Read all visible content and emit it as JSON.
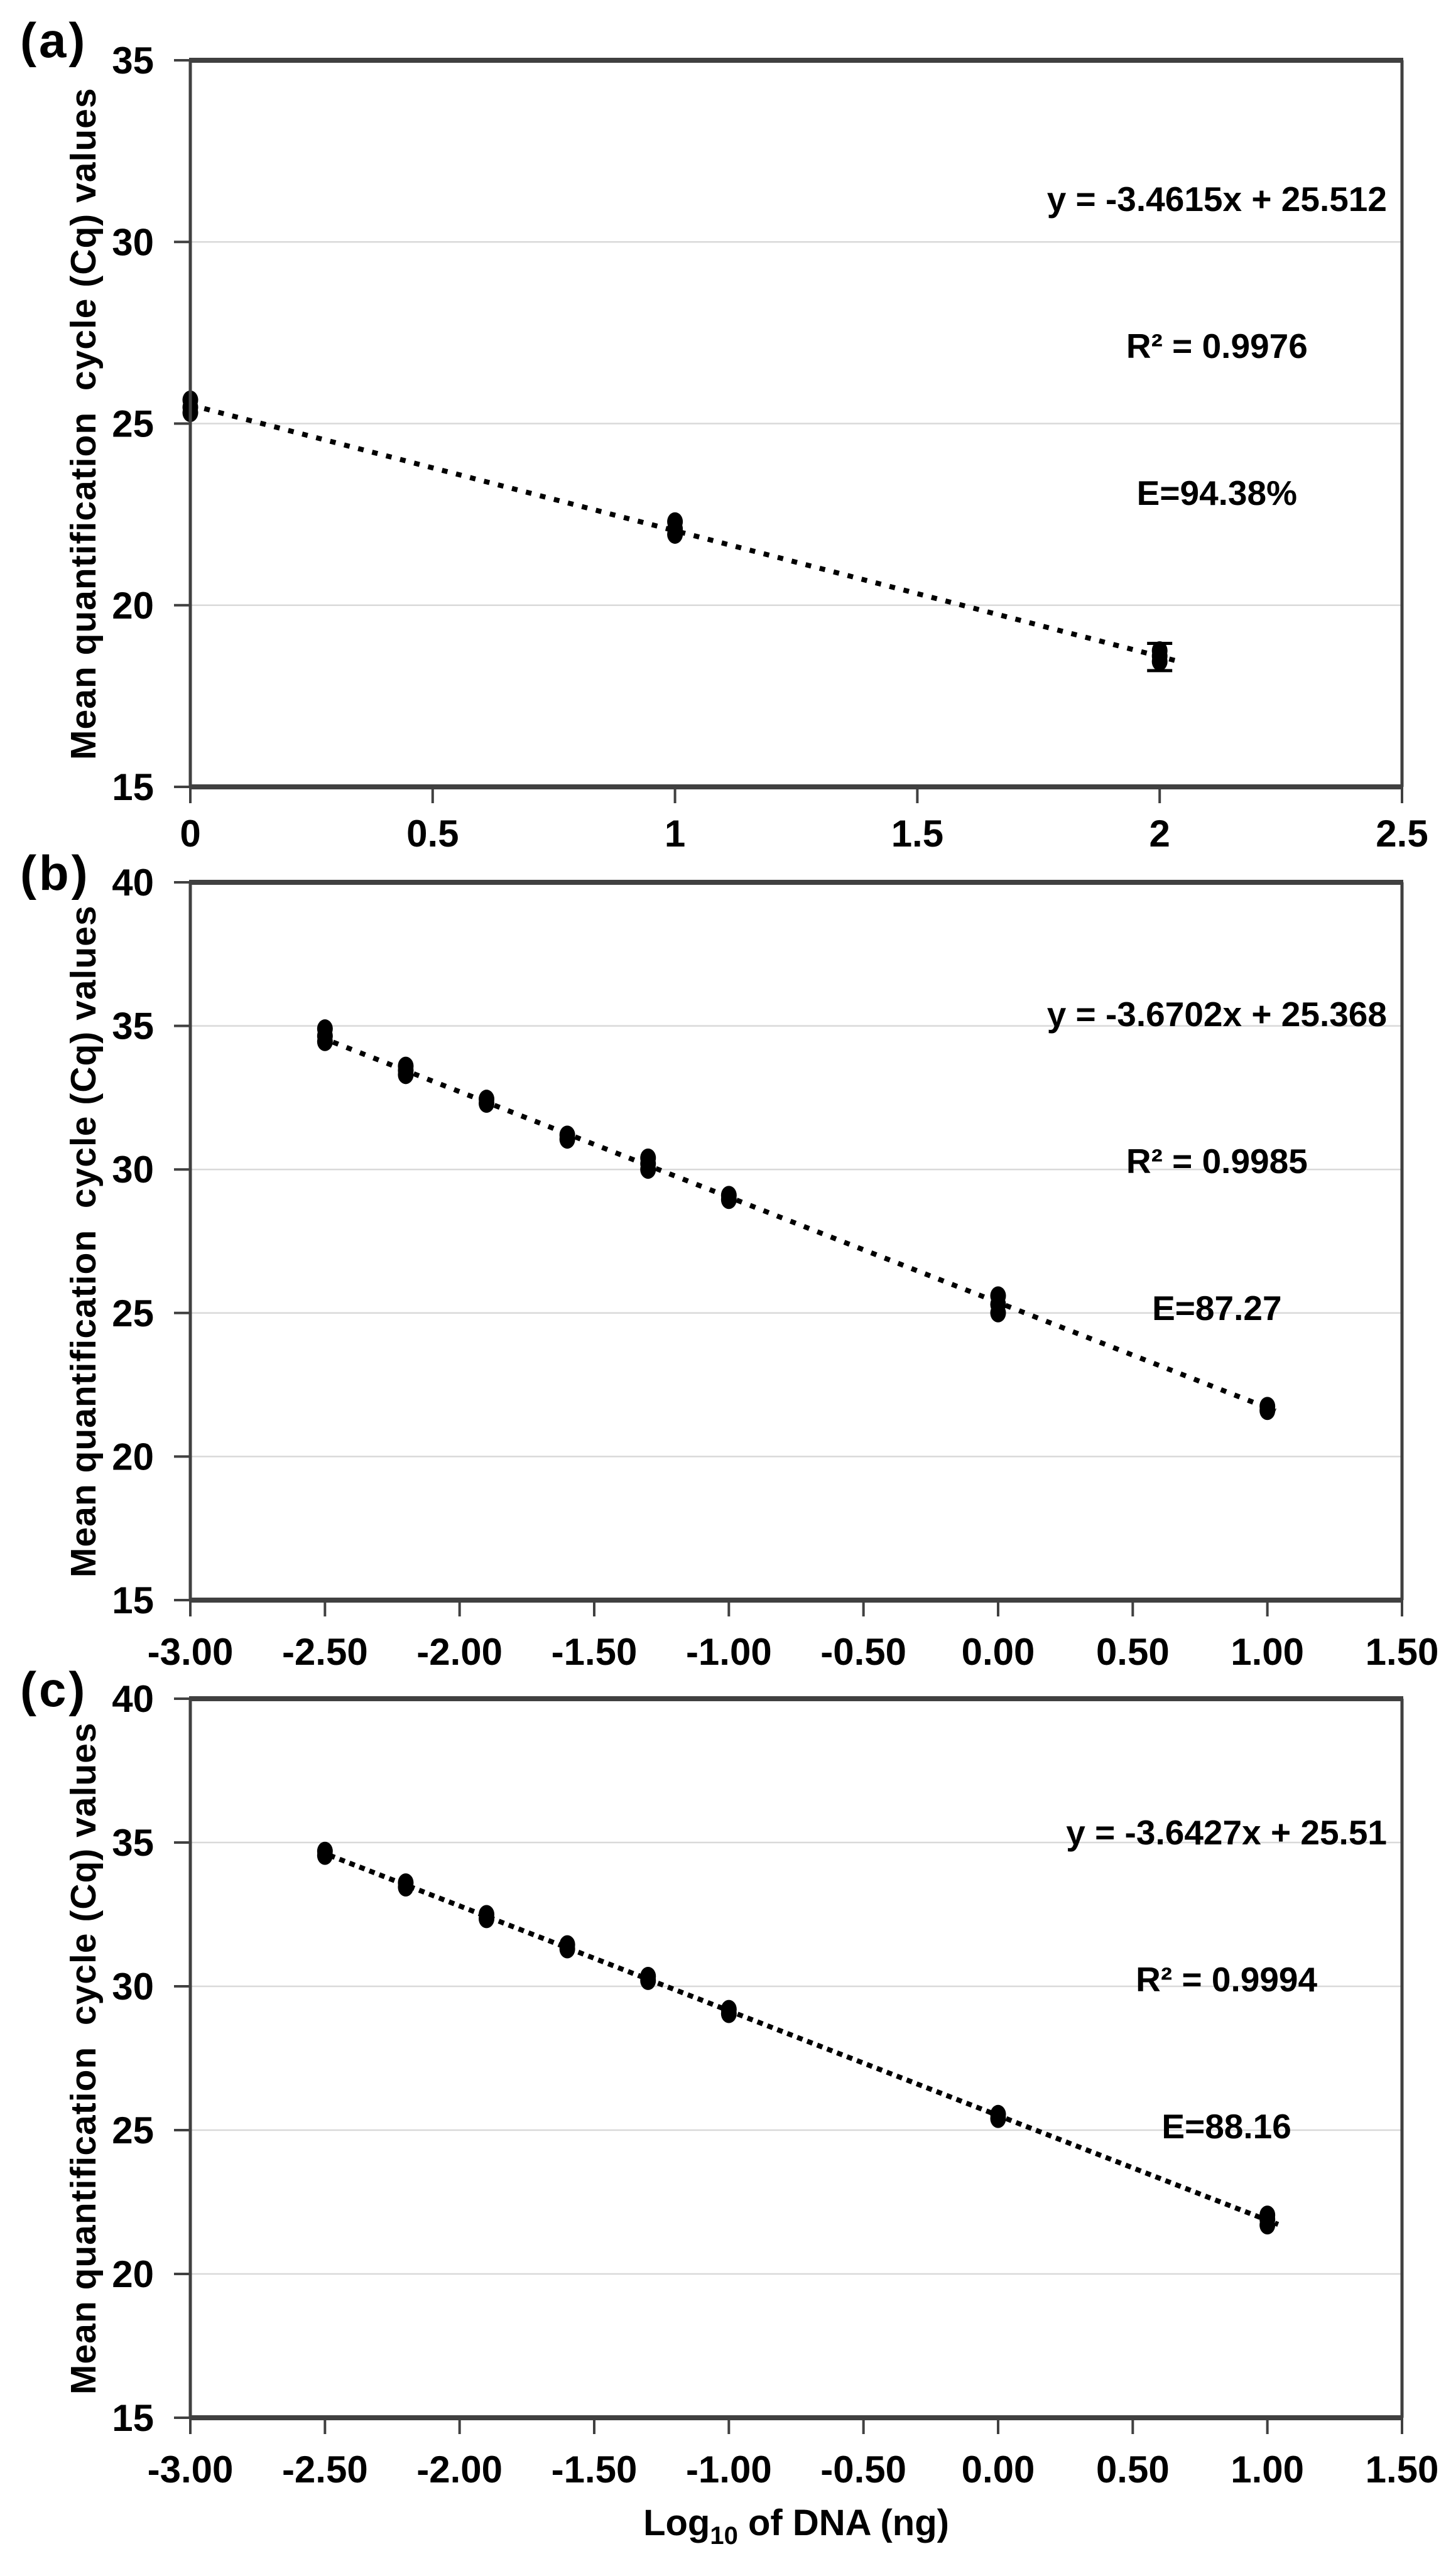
{
  "colors": {
    "background": "#ffffff",
    "text": "#000000",
    "axis": "#404040",
    "gridline": "#d9d9d9",
    "marker": "#000000",
    "trendline": "#000000"
  },
  "x_axis_title": {
    "prefix": "Log",
    "subscript": "10",
    "suffix": " of DNA (ng)"
  },
  "chart_data": [
    {
      "id": "a",
      "panel_label": "(a)",
      "type": "scatter",
      "y_axis_title": "Mean quantification  cycle (Cq) values",
      "annotation": {
        "equation": "y = -3.4615x + 25.512",
        "r_squared": "R² = 0.9976",
        "efficiency": "E=94.38%"
      },
      "xlim": [
        0,
        2.5
      ],
      "ylim": [
        15,
        35
      ],
      "xticks": {
        "values": [
          0,
          0.5,
          1,
          1.5,
          2,
          2.5
        ],
        "labels": [
          "0",
          "0.5",
          "1",
          "1.5",
          "2",
          "2.5"
        ]
      },
      "yticks": {
        "values": [
          35,
          30,
          25,
          20,
          15
        ],
        "labels": [
          "35",
          "30",
          "25",
          "20",
          "15"
        ]
      },
      "grid": "horizontal",
      "legend": "none",
      "trendline": {
        "slope": -3.4615,
        "intercept": 25.512,
        "x_start": 0,
        "x_end": 2.04,
        "style": "dotted"
      },
      "points": [
        {
          "x": 0,
          "replicates": [
            25.3,
            25.45,
            25.65
          ]
        },
        {
          "x": 1,
          "replicates": [
            21.95,
            22.1,
            22.3
          ]
        },
        {
          "x": 2,
          "replicates": [
            18.45,
            18.6,
            18.75
          ],
          "error_bar": {
            "low": 18.2,
            "high": 18.95
          }
        }
      ]
    },
    {
      "id": "b",
      "panel_label": "(b)",
      "type": "scatter",
      "y_axis_title": "Mean quantification  cycle (Cq) values",
      "annotation": {
        "equation": "y = -3.6702x + 25.368",
        "r_squared": "R² = 0.9985",
        "efficiency": "E=87.27"
      },
      "xlim": [
        -3,
        1.5
      ],
      "ylim": [
        15,
        40
      ],
      "xticks": {
        "values": [
          -3,
          -2.5,
          -2,
          -1.5,
          -1,
          -0.5,
          0,
          0.5,
          1,
          1.5
        ],
        "labels": [
          "-3.00",
          "-2.50",
          "-2.00",
          "-1.50",
          "-1.00",
          "-0.50",
          "0.00",
          "0.50",
          "1.00",
          "1.50"
        ]
      },
      "yticks": {
        "values": [
          40,
          35,
          30,
          25,
          20,
          15
        ],
        "labels": [
          "40",
          "35",
          "30",
          "25",
          "20",
          "15"
        ]
      },
      "grid": "horizontal",
      "legend": "none",
      "trendline": {
        "slope": -3.6702,
        "intercept": 25.368,
        "x_start": -2.52,
        "x_end": 1.03,
        "style": "dotted"
      },
      "points": [
        {
          "x": -2.5,
          "replicates": [
            34.45,
            34.65,
            34.9
          ]
        },
        {
          "x": -2.2,
          "replicates": [
            33.3,
            33.45,
            33.6
          ]
        },
        {
          "x": -1.9,
          "replicates": [
            32.3,
            32.45
          ]
        },
        {
          "x": -1.6,
          "replicates": [
            31.05,
            31.2
          ]
        },
        {
          "x": -1.3,
          "replicates": [
            30.0,
            30.2,
            30.4
          ]
        },
        {
          "x": -1.0,
          "replicates": [
            28.95,
            29.1
          ]
        },
        {
          "x": 0,
          "replicates": [
            25.0,
            25.3,
            25.6
          ]
        },
        {
          "x": 1,
          "replicates": [
            21.6,
            21.75
          ]
        }
      ]
    },
    {
      "id": "c",
      "panel_label": "(c)",
      "type": "scatter",
      "y_axis_title": "Mean quantification  cycle (Cq) values",
      "annotation": {
        "equation": "y = -3.6427x + 25.51",
        "r_squared": "R² = 0.9994",
        "efficiency": "E=88.16"
      },
      "xlim": [
        -3,
        1.5
      ],
      "xticks": {
        "values": [
          -3,
          -2.5,
          -2,
          -1.5,
          -1,
          -0.5,
          0,
          0.5,
          1,
          1.5
        ],
        "labels": [
          "-3.00",
          "-2.50",
          "-2.00",
          "-1.50",
          "-1.00",
          "-0.50",
          "0.00",
          "0.50",
          "1.00",
          "1.50"
        ]
      },
      "ylim": [
        15,
        40
      ],
      "yticks": {
        "values": [
          40,
          35,
          30,
          25,
          20,
          15
        ],
        "labels": [
          "40",
          "35",
          "30",
          "25",
          "20",
          "15"
        ]
      },
      "grid": "horizontal",
      "legend": "none",
      "trendline": {
        "slope": -3.6427,
        "intercept": 25.51,
        "x_start": -2.52,
        "x_end": 1.04,
        "style": "dense-dotted"
      },
      "points": [
        {
          "x": -2.5,
          "replicates": [
            34.55,
            34.7
          ]
        },
        {
          "x": -2.2,
          "replicates": [
            33.45,
            33.6
          ]
        },
        {
          "x": -1.9,
          "replicates": [
            32.35,
            32.5
          ]
        },
        {
          "x": -1.6,
          "replicates": [
            31.3,
            31.45
          ]
        },
        {
          "x": -1.3,
          "replicates": [
            30.2,
            30.35
          ]
        },
        {
          "x": -1.0,
          "replicates": [
            29.05,
            29.2
          ]
        },
        {
          "x": 0,
          "replicates": [
            25.4,
            25.55
          ]
        },
        {
          "x": 1,
          "replicates": [
            21.7,
            21.9,
            22.05
          ]
        }
      ]
    }
  ]
}
